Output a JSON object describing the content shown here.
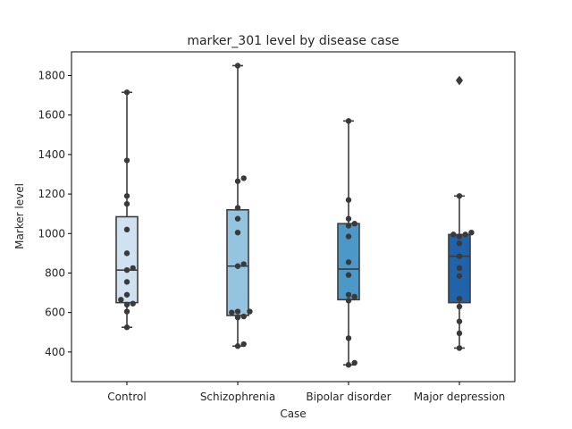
{
  "chart_data": {
    "type": "box",
    "title": "marker_301 level by disease case",
    "xlabel": "Case",
    "ylabel": "Marker level",
    "ylim": [
      250,
      1920
    ],
    "yticks": [
      400,
      600,
      800,
      1000,
      1200,
      1400,
      1600,
      1800
    ],
    "categories": [
      "Control",
      "Schizophrenia",
      "Bipolar disorder",
      "Major depression"
    ],
    "colors": [
      "#d0e1f2",
      "#94c4df",
      "#4b98c9",
      "#2163aa"
    ],
    "boxes": [
      {
        "name": "Control",
        "whisker_low": 525,
        "q1": 650,
        "median": 815,
        "q3": 1085,
        "whisker_high": 1715,
        "outliers": []
      },
      {
        "name": "Schizophrenia",
        "whisker_low": 430,
        "q1": 585,
        "median": 835,
        "q3": 1120,
        "whisker_high": 1850,
        "outliers": []
      },
      {
        "name": "Bipolar disorder",
        "whisker_low": 335,
        "q1": 665,
        "median": 820,
        "q3": 1050,
        "whisker_high": 1570,
        "outliers": []
      },
      {
        "name": "Major depression",
        "whisker_low": 420,
        "q1": 650,
        "median": 885,
        "q3": 995,
        "whisker_high": 1190,
        "outliers": [
          1775
        ]
      }
    ],
    "points": [
      {
        "category": "Control",
        "values": [
          1715,
          1370,
          1190,
          1150,
          1020,
          900,
          825,
          815,
          755,
          690,
          665,
          645,
          640,
          605,
          525
        ]
      },
      {
        "category": "Schizophrenia",
        "values": [
          1850,
          1280,
          1265,
          1130,
          1075,
          1005,
          845,
          835,
          605,
          605,
          600,
          580,
          575,
          440,
          430
        ]
      },
      {
        "category": "Bipolar disorder",
        "values": [
          1570,
          1170,
          1075,
          1050,
          1040,
          985,
          855,
          790,
          690,
          680,
          660,
          470,
          345,
          335
        ]
      },
      {
        "category": "Major depression",
        "values": [
          1775,
          1190,
          1005,
          995,
          995,
          985,
          950,
          885,
          825,
          785,
          670,
          630,
          555,
          495,
          420
        ]
      }
    ]
  }
}
